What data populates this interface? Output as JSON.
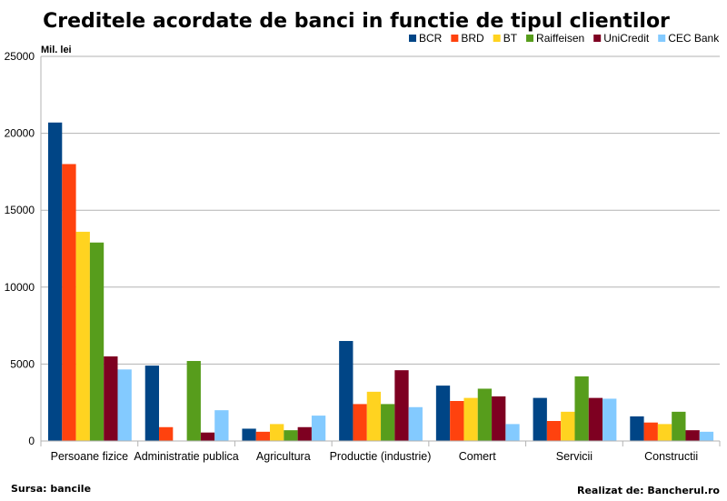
{
  "chart_data": {
    "type": "bar",
    "title": "Creditele acordate de banci in functie de tipul clientilor",
    "ylabel": "Mil. lei",
    "xlabel": "",
    "ylim": [
      0,
      25000
    ],
    "yticks": [
      0,
      5000,
      10000,
      15000,
      20000,
      25000
    ],
    "grid": true,
    "legend_position": "top-right",
    "categories": [
      "Persoane fizice",
      "Administratie publica",
      "Agricultura",
      "Productie (industrie)",
      "Comert",
      "Servicii",
      "Constructii"
    ],
    "series": [
      {
        "name": "BCR",
        "color": "#004586",
        "values": [
          20700,
          4900,
          800,
          6500,
          3600,
          2800,
          1600
        ]
      },
      {
        "name": "BRD",
        "color": "#ff420e",
        "values": [
          18000,
          900,
          600,
          2400,
          2600,
          1300,
          1200
        ]
      },
      {
        "name": "BT",
        "color": "#ffd320",
        "values": [
          13600,
          0,
          1100,
          3200,
          2800,
          1900,
          1100
        ]
      },
      {
        "name": "Raiffeisen",
        "color": "#579d1c",
        "values": [
          12900,
          5200,
          700,
          2400,
          3400,
          4200,
          1900
        ]
      },
      {
        "name": "UniCredit",
        "color": "#7e0021",
        "values": [
          5500,
          550,
          900,
          4600,
          2900,
          2800,
          700
        ]
      },
      {
        "name": "CEC Bank",
        "color": "#83caff",
        "values": [
          4650,
          2000,
          1650,
          2200,
          1100,
          2750,
          600
        ]
      }
    ]
  },
  "footer": {
    "source": "Sursa: bancile",
    "credit": "Realizat de: Bancherul.ro"
  }
}
